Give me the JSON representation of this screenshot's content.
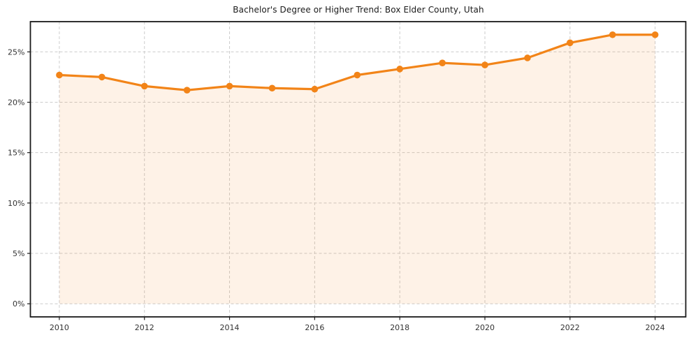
{
  "chart_data": {
    "type": "area",
    "title": "Bachelor's Degree or Higher Trend: Box Elder County, Utah",
    "xlabel": "",
    "ylabel": "",
    "x": [
      2010,
      2011,
      2012,
      2013,
      2014,
      2015,
      2016,
      2017,
      2018,
      2019,
      2020,
      2021,
      2022,
      2023,
      2024
    ],
    "values": [
      22.7,
      22.5,
      21.6,
      21.2,
      21.6,
      21.4,
      21.3,
      22.7,
      23.3,
      23.9,
      23.7,
      24.4,
      25.9,
      26.7,
      26.7
    ],
    "x_ticks": [
      2010,
      2012,
      2014,
      2016,
      2018,
      2020,
      2022,
      2024
    ],
    "x_tick_labels": [
      "2010",
      "2012",
      "2014",
      "2016",
      "2018",
      "2020",
      "2022",
      "2024"
    ],
    "y_ticks": [
      0,
      5,
      10,
      15,
      20,
      25
    ],
    "y_tick_labels": [
      "0%",
      "5%",
      "10%",
      "15%",
      "20%",
      "25%"
    ],
    "xlim": [
      2009.32,
      2024.72
    ],
    "ylim": [
      -1.3,
      28.0
    ],
    "grid": true,
    "legend": "none",
    "colors": {
      "line": "#f28418",
      "marker": "#f28418",
      "area_fill": "rgba(242,132,24,0.10)",
      "grid": "#cccccc",
      "axis_border": "#1a1a1a",
      "tick_text": "#333333",
      "title_text": "#1a1a1a"
    }
  }
}
